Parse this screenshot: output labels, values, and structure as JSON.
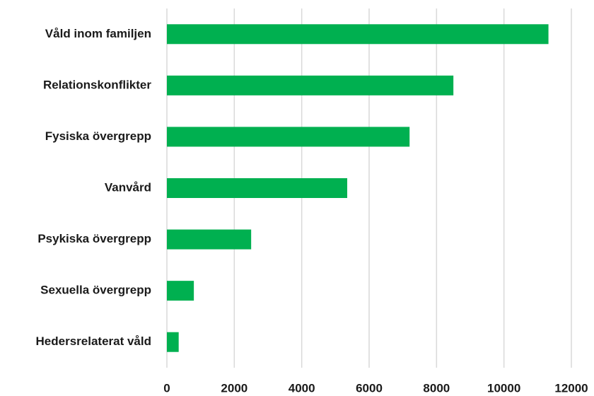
{
  "chart_data": {
    "type": "barh",
    "categories": [
      "Våld inom familjen",
      "Relationskonflikter",
      "Fysiska övergrepp",
      "Vanvård",
      "Psykiska övergrepp",
      "Sexuella övergrepp",
      "Hedersrelaterat våld"
    ],
    "values": [
      11320,
      8500,
      7200,
      5350,
      2500,
      800,
      350
    ],
    "color": "#00b050",
    "xlim": [
      0,
      12000
    ],
    "xticks": [
      0,
      2000,
      4000,
      6000,
      8000,
      10000,
      12000
    ],
    "grid": true
  }
}
